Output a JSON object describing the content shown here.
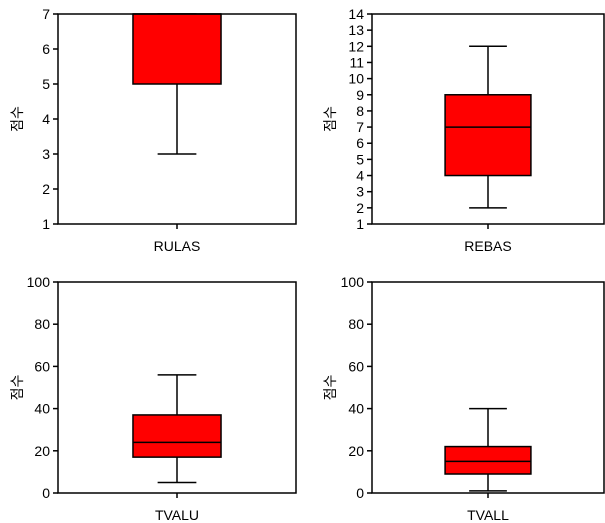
{
  "chart_data": [
    {
      "type": "box",
      "category": "RULAS",
      "ylabel": "점수",
      "ylim": [
        1,
        7
      ],
      "yticks": [
        1,
        2,
        3,
        4,
        5,
        6,
        7
      ],
      "box": {
        "min": 3,
        "q1": 5,
        "median": 7,
        "q3": 7,
        "max": 7
      },
      "color": "#ff0000"
    },
    {
      "type": "box",
      "category": "REBAS",
      "ylabel": "점수",
      "ylim": [
        1,
        14
      ],
      "yticks": [
        1,
        2,
        3,
        4,
        5,
        6,
        7,
        8,
        9,
        10,
        11,
        12,
        13,
        14
      ],
      "box": {
        "min": 2,
        "q1": 4,
        "median": 7,
        "q3": 9,
        "max": 12
      },
      "color": "#ff0000"
    },
    {
      "type": "box",
      "category": "TVALU",
      "ylabel": "점수",
      "ylim": [
        0,
        100
      ],
      "yticks": [
        0,
        20,
        40,
        60,
        80,
        100
      ],
      "box": {
        "min": 5,
        "q1": 17,
        "median": 24,
        "q3": 37,
        "max": 56
      },
      "color": "#ff0000"
    },
    {
      "type": "box",
      "category": "TVALL",
      "ylabel": "점수",
      "ylim": [
        0,
        100
      ],
      "yticks": [
        0,
        20,
        40,
        60,
        80,
        100
      ],
      "box": {
        "min": 1,
        "q1": 9,
        "median": 15,
        "q3": 22,
        "max": 40
      },
      "color": "#ff0000"
    }
  ]
}
